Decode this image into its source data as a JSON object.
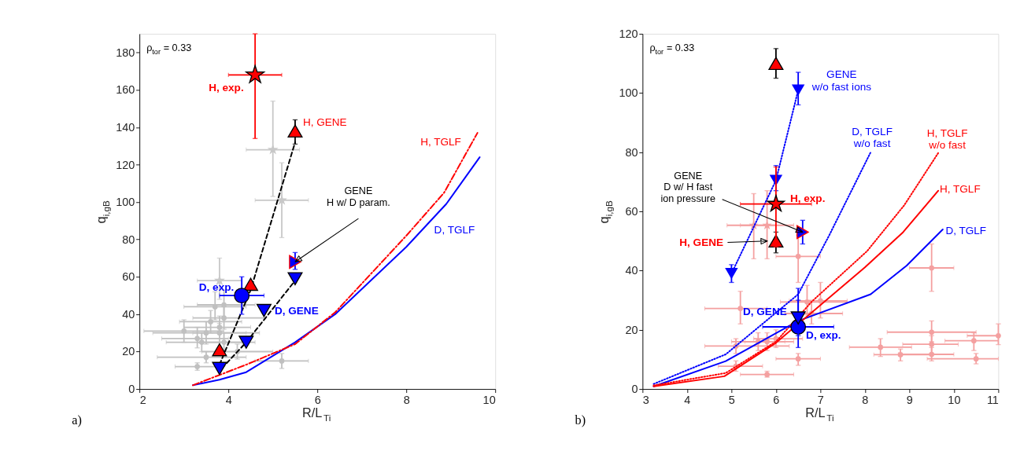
{
  "chart_data": [
    {
      "type": "scatter",
      "xlabel": "R/L$_{Ti}$",
      "ylabel": "q$_{i,gB}$",
      "xlim": [
        2,
        10
      ],
      "ylim": [
        0,
        190
      ],
      "xticks": [
        2,
        4,
        6,
        8,
        10
      ],
      "yticks": [
        0,
        20,
        40,
        60,
        80,
        100,
        120,
        140,
        160,
        180
      ],
      "annotations": [
        "ρ$_{tor}$ = 0.33",
        "a)",
        {
          "text": "GENE\nH w/ D param.",
          "x": 5.5,
          "y": 68
        }
      ],
      "series": [
        {
          "color": "#c0c0c0",
          "marker": "circle",
          "x": [
            3.7,
            3.9,
            3.9,
            3.6,
            3.8,
            3.5,
            3.8,
            3.3,
            3.4,
            3.9,
            3.5,
            3.3,
            5.2,
            4.2,
            3.0
          ],
          "values": [
            44,
            45,
            38,
            36,
            33,
            30,
            30,
            27,
            25,
            25,
            17,
            12,
            15,
            20,
            31
          ],
          "xerrors": [
            [
              3.0,
              4.4
            ],
            [
              3.3,
              4.6
            ],
            [
              3.2,
              4.8
            ],
            [
              2.9,
              4.3
            ],
            [
              3.0,
              4.5
            ],
            [
              2.3,
              4.7
            ],
            [
              3.2,
              4.4
            ],
            [
              2.5,
              4.0
            ],
            [
              2.6,
              4.3
            ],
            [
              3.3,
              4.6
            ],
            [
              2.4,
              4.4
            ],
            [
              2.8,
              3.9
            ],
            [
              4.6,
              5.8
            ],
            [
              3.4,
              5.0
            ],
            [
              2.1,
              3.9
            ]
          ],
          "errors": [
            [
              37,
              52
            ],
            [
              38,
              53
            ],
            [
              32,
              44
            ],
            [
              30,
              42
            ],
            [
              27,
              39
            ],
            [
              24,
              36
            ],
            [
              25,
              35
            ],
            [
              22,
              33
            ],
            [
              20,
              30
            ],
            [
              20,
              30
            ],
            [
              14,
              20
            ],
            [
              10,
              14
            ],
            [
              11,
              19
            ],
            [
              16,
              24
            ],
            [
              25,
              37
            ]
          ]
        },
        {
          "color": "#c8c8c8",
          "marker": "star",
          "x": [
            5.0,
            5.2,
            3.8
          ],
          "values": [
            128,
            101,
            58
          ],
          "xerrors": [
            [
              4.4,
              5.6
            ],
            [
              4.6,
              5.8
            ],
            [
              3.3,
              4.3
            ]
          ],
          "errors": [
            [
              103,
              154
            ],
            [
              81,
              121
            ],
            [
              48,
              70
            ]
          ]
        },
        {
          "type": "line",
          "color": "#000000",
          "line_style": "dashed",
          "x": [
            3.8,
            4.5,
            5.5
          ],
          "values": [
            13,
            53,
            132
          ]
        },
        {
          "type": "line",
          "color": "#000000",
          "line_style": "dashed",
          "x": [
            3.85,
            4.4,
            5.5
          ],
          "values": [
            11,
            25,
            58
          ]
        },
        {
          "type": "line",
          "name": "D, TGLF",
          "color": "#0000ff",
          "line_style": "solid",
          "x": [
            3.2,
            3.8,
            4.4,
            5.5,
            6.4,
            8.0,
            8.9,
            9.65
          ],
          "values": [
            2,
            5,
            9,
            25,
            40,
            76,
            99,
            124
          ]
        },
        {
          "type": "line",
          "name": "H, TGLF",
          "color": "#ff0000",
          "line_style": "dashdot",
          "x": [
            3.2,
            4.4,
            5.5,
            6.4,
            8.0,
            8.85,
            9.6
          ],
          "values": [
            2,
            13,
            24,
            41,
            82,
            105,
            137
          ]
        },
        {
          "name": "H, exp.",
          "color": "#ff0000",
          "marker": "star",
          "x": [
            4.6
          ],
          "values": [
            168
          ],
          "xerrors": [
            [
              4.0,
              5.2
            ]
          ],
          "errors": [
            [
              134,
              190
            ]
          ]
        },
        {
          "name": "H, GENE",
          "color": "#ff0000",
          "marker": "triangle",
          "x": [
            5.5,
            4.5,
            3.8
          ],
          "values": [
            138,
            56,
            21
          ],
          "errors": [
            [
              131,
              144
            ],
            null,
            null
          ]
        },
        {
          "name": "D, exp.",
          "color": "#0000ff",
          "marker": "circle",
          "x": [
            4.3
          ],
          "values": [
            50
          ],
          "xerrors": [
            [
              3.8,
              4.8
            ]
          ],
          "errors": [
            [
              40,
              60
            ]
          ]
        },
        {
          "name": "D, GENE",
          "color": "#0000ff",
          "marker": "triangle-down",
          "x": [
            3.8,
            4.4,
            4.8,
            5.5
          ],
          "values": [
            11,
            25,
            42,
            59
          ]
        },
        {
          "color": "#0000ff",
          "marker": "triangle-right",
          "x": [
            5.5
          ],
          "values": [
            68
          ],
          "errors": [
            [
              64,
              73
            ]
          ]
        }
      ]
    },
    {
      "type": "scatter",
      "xlabel": "R/L$_{Ti}$",
      "ylabel": "q$_{i,gB}$",
      "xlim": [
        3,
        11
      ],
      "ylim": [
        0,
        120
      ],
      "xticks": [
        3,
        4,
        5,
        6,
        7,
        8,
        9,
        10,
        11
      ],
      "yticks": [
        0,
        20,
        40,
        60,
        80,
        100,
        120
      ],
      "annotations": [
        "ρ$_{tor}$ = 0.33",
        "b)",
        {
          "text": "GENE\nD w/ H fast\nion pressure",
          "x": 6.6,
          "y": 53
        }
      ],
      "series": [
        {
          "color": "#f4a0a0",
          "marker": "circle",
          "x": [
            9.5,
            8.35,
            8.8,
            9.5,
            9.5,
            9.5,
            10.45,
            10.5,
            11,
            6.5,
            6.7,
            7.0,
            6.8,
            6.5,
            5.2,
            5.1,
            5.1,
            5.8,
            5.8,
            5.6,
            6.0
          ],
          "values": [
            40.9,
            14.1,
            11.6,
            19.2,
            15.1,
            11.7,
            16.3,
            10.2,
            18,
            44.8,
            29.4,
            29.8,
            25.5,
            10.2,
            27.2,
            14.5,
            7.7,
            4.9,
            16,
            16,
            17
          ],
          "xerrors": [
            [
              9.0,
              10.0
            ],
            [
              7.65,
              9.05
            ],
            [
              8.2,
              9.5
            ],
            [
              8.5,
              10.5
            ],
            [
              8.85,
              10.1
            ],
            [
              8.75,
              10.0
            ],
            [
              9.8,
              11
            ],
            [
              9.4,
              11
            ],
            [
              10.3,
              11
            ],
            [
              6.0,
              7.0
            ],
            [
              6.1,
              7.6
            ],
            [
              6.3,
              7.6
            ],
            [
              6.2,
              7.5
            ],
            [
              6.0,
              7.0
            ],
            [
              4.4,
              5.8
            ],
            [
              4.4,
              6.3
            ],
            [
              4.7,
              5.7
            ],
            [
              5.2,
              6.4
            ],
            [
              5.3,
              6.4
            ],
            [
              5.0,
              6.2
            ],
            [
              5.5,
              6.6
            ]
          ],
          "errors": [
            [
              33,
              49
            ],
            [
              11,
              17
            ],
            [
              9.5,
              13.5
            ],
            [
              16,
              23
            ],
            [
              12,
              18
            ],
            [
              9.5,
              14
            ],
            [
              13,
              19
            ],
            [
              8.5,
              12
            ],
            [
              15,
              22
            ],
            [
              36,
              52
            ],
            [
              25,
              35
            ],
            [
              24,
              36
            ],
            [
              22,
              30
            ],
            [
              8,
              12
            ],
            [
              22,
              33
            ],
            [
              12,
              17
            ],
            [
              6,
              9.5
            ],
            [
              4,
              6
            ],
            [
              13,
              19
            ],
            [
              13,
              19
            ],
            [
              14,
              20
            ]
          ]
        },
        {
          "color": "#f4a0a0",
          "marker": "star",
          "x": [
            5.5,
            5.8
          ],
          "values": [
            55.3,
            55.3
          ],
          "xerrors": [
            [
              4.9,
              6.0
            ],
            [
              5.2,
              6.4
            ]
          ],
          "errors": [
            [
              44,
              66
            ],
            [
              44,
              67
            ]
          ]
        },
        {
          "type": "line",
          "name": "D, TGLF",
          "color": "#0000ff",
          "line_style": "solid",
          "x": [
            3.25,
            4.87,
            6.5,
            8.13,
            8.94,
            9.75
          ],
          "values": [
            0.9,
            9.4,
            23,
            32,
            41.7,
            53.9
          ]
        },
        {
          "type": "line",
          "name": "H, TGLF",
          "color": "#ff0000",
          "line_style": "solid",
          "x": [
            3.25,
            4.84,
            6.0,
            8.0,
            8.86,
            9.65
          ],
          "values": [
            0.9,
            4.3,
            15.6,
            41.1,
            53,
            67
          ]
        },
        {
          "type": "line",
          "name": "D, TGLF\nw/o fast",
          "color": "#0000ff",
          "line_style": "dotted",
          "x": [
            3.25,
            4.87,
            6.5,
            7.2,
            8.13
          ],
          "values": [
            1.7,
            11.7,
            32,
            52,
            80
          ]
        },
        {
          "type": "line",
          "name": "H, TGLF\nw/o fast",
          "color": "#ff0000",
          "line_style": "dotted",
          "x": [
            3.25,
            4.87,
            6.0,
            6.81,
            8.05,
            8.88,
            9.66
          ],
          "values": [
            1.2,
            5.4,
            16,
            29.6,
            46.6,
            62,
            80
          ]
        },
        {
          "type": "line",
          "name": "GENE\nw/o fast ions",
          "color": "#0000ff",
          "line_style": "dotted",
          "marker": "triangle-down",
          "x": [
            5,
            6,
            6.5
          ],
          "values": [
            39,
            70.5,
            101
          ],
          "errors": [
            [
              36,
              42
            ],
            [
              67,
              75.5
            ],
            [
              96,
              107
            ]
          ]
        },
        {
          "name": "H, GENE",
          "color": "#ff0000",
          "marker": "triangle",
          "x": [
            6,
            6
          ],
          "values": [
            110,
            50
          ],
          "errors": [
            [
              105,
              115
            ],
            [
              46,
              53
            ]
          ]
        },
        {
          "name": "H, exp.",
          "color": "#ff0000",
          "marker": "star",
          "x": [
            6
          ],
          "values": [
            62.5
          ],
          "xerrors": [
            [
              5.2,
              6.8
            ]
          ],
          "errors": [
            [
              48,
              75
            ]
          ]
        },
        {
          "name": "D, exp.",
          "color": "#0000ff",
          "marker": "circle",
          "x": [
            6.5
          ],
          "values": [
            21
          ],
          "xerrors": [
            [
              5.7,
              7.3
            ]
          ],
          "errors": [
            [
              14,
              34
            ]
          ]
        },
        {
          "name": "D, GENE",
          "color": "#0000ff",
          "marker": "triangle-down",
          "x": [
            6.5
          ],
          "values": [
            24
          ],
          "errors": [
            [
              18,
              30
            ]
          ]
        },
        {
          "color": "#0000ff",
          "marker": "triangle-right",
          "x": [
            6.6
          ],
          "values": [
            53
          ],
          "errors": [
            [
              49,
              57
            ]
          ]
        }
      ]
    }
  ]
}
